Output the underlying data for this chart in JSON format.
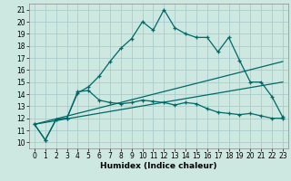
{
  "title": "",
  "xlabel": "Humidex (Indice chaleur)",
  "background_color": "#cce8e0",
  "grid_color": "#aacccc",
  "line_color": "#006868",
  "xlim": [
    -0.5,
    23.5
  ],
  "ylim": [
    9.5,
    21.5
  ],
  "yticks": [
    10,
    11,
    12,
    13,
    14,
    15,
    16,
    17,
    18,
    19,
    20,
    21
  ],
  "xticks": [
    0,
    1,
    2,
    3,
    4,
    5,
    6,
    7,
    8,
    9,
    10,
    11,
    12,
    13,
    14,
    15,
    16,
    17,
    18,
    19,
    20,
    21,
    22,
    23
  ],
  "series1_x": [
    0,
    1,
    2,
    3,
    4,
    5,
    6,
    7,
    8,
    9,
    10,
    11,
    12,
    13,
    14,
    15,
    16,
    17,
    18,
    19,
    20,
    21,
    22,
    23
  ],
  "series1_y": [
    11.5,
    10.2,
    11.9,
    12.0,
    14.1,
    14.6,
    15.5,
    16.7,
    17.8,
    18.6,
    20.0,
    19.3,
    21.0,
    19.5,
    19.0,
    18.7,
    18.7,
    17.5,
    18.7,
    16.8,
    15.0,
    15.0,
    13.8,
    12.1
  ],
  "series2_x": [
    0,
    1,
    2,
    3,
    4,
    5,
    6,
    7,
    8,
    9,
    10,
    11,
    12,
    13,
    14,
    15,
    16,
    17,
    18,
    19,
    20,
    21,
    22,
    23
  ],
  "series2_y": [
    11.5,
    10.2,
    11.9,
    12.0,
    14.2,
    14.3,
    13.5,
    13.3,
    13.2,
    13.3,
    13.5,
    13.4,
    13.3,
    13.1,
    13.3,
    13.2,
    12.8,
    12.5,
    12.4,
    12.3,
    12.4,
    12.2,
    12.0,
    12.0
  ],
  "series3_x": [
    0,
    23
  ],
  "series3_y": [
    11.5,
    16.7
  ],
  "series4_x": [
    0,
    23
  ],
  "series4_y": [
    11.5,
    15.0
  ]
}
